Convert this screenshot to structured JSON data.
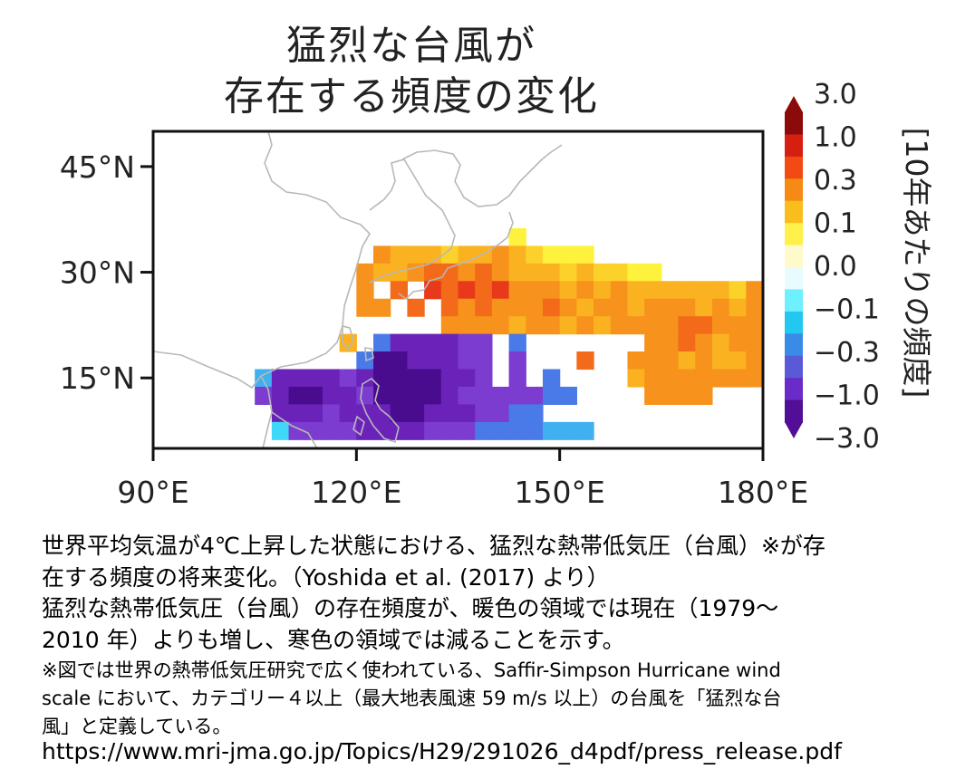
{
  "title": {
    "line1": "猛烈な台風が",
    "line2": "存在する頻度の変化"
  },
  "axes": {
    "lat_labels": [
      "45°N",
      "30°N",
      "15°N"
    ],
    "lon_labels": [
      "90°E",
      "120°E",
      "150°E",
      "180°E"
    ],
    "lat_values": [
      45,
      30,
      15
    ],
    "lon_values": [
      90,
      120,
      150,
      180
    ],
    "lon_range": [
      90,
      180
    ],
    "lat_range": [
      5,
      50
    ]
  },
  "colorbar": {
    "title": "[10年あたりの頻度]",
    "ticks": [
      "3.0",
      "1.0",
      "0.3",
      "0.1",
      "0.0",
      "−0.1",
      "−0.3",
      "−1.0",
      "−3.0"
    ],
    "colors": [
      "#8c0a0a",
      "#d61f10",
      "#f24a12",
      "#f58a14",
      "#fbbd1c",
      "#fff04a",
      "#fffacc",
      "#e8fbff",
      "#6ff0ff",
      "#22c8f0",
      "#3a8ae8",
      "#5a5ad8",
      "#6a2cc8",
      "#520e96"
    ]
  },
  "palette": {
    "darkred": "#c81c10",
    "red": "#e8391a",
    "orange_red": "#f26a1a",
    "orange": "#f7921c",
    "light_orange": "#fbb220",
    "yellow_orange": "#fcd22a",
    "yellow": "#fff23c",
    "deep_purple": "#4a0c8e",
    "purple": "#6a22b8",
    "violet": "#7c3cd0",
    "blue": "#4a7ae8",
    "light_blue": "#40b0f0",
    "cyan": "#40d8f8"
  },
  "chart_data": {
    "type": "heatmap",
    "title": "猛烈な台風が存在する頻度の変化",
    "xlabel": "",
    "ylabel": "",
    "x_range": [
      90,
      180
    ],
    "y_range": [
      5,
      50
    ],
    "legend": "colorbar-right",
    "grid": false,
    "cell_size_deg": 2.5,
    "cells": [
      {
        "lon": 143.75,
        "lat": 35,
        "c": "yellow"
      },
      {
        "lon": 123.75,
        "lat": 32.5,
        "c": "orange"
      },
      {
        "lon": 126.25,
        "lat": 32.5,
        "c": "light_orange"
      },
      {
        "lon": 128.75,
        "lat": 32.5,
        "c": "light_orange"
      },
      {
        "lon": 131.25,
        "lat": 32.5,
        "c": "light_orange"
      },
      {
        "lon": 133.75,
        "lat": 32.5,
        "c": "yellow_orange"
      },
      {
        "lon": 136.25,
        "lat": 32.5,
        "c": "light_orange"
      },
      {
        "lon": 138.75,
        "lat": 32.5,
        "c": "light_orange"
      },
      {
        "lon": 141.25,
        "lat": 32.5,
        "c": "orange"
      },
      {
        "lon": 143.75,
        "lat": 32.5,
        "c": "light_orange"
      },
      {
        "lon": 146.25,
        "lat": 32.5,
        "c": "yellow_orange"
      },
      {
        "lon": 148.75,
        "lat": 32.5,
        "c": "yellow"
      },
      {
        "lon": 151.25,
        "lat": 32.5,
        "c": "yellow"
      },
      {
        "lon": 153.75,
        "lat": 32.5,
        "c": "yellow"
      },
      {
        "lon": 121.25,
        "lat": 30,
        "c": "orange"
      },
      {
        "lon": 123.75,
        "lat": 30,
        "c": "light_orange"
      },
      {
        "lon": 126.25,
        "lat": 30,
        "c": "light_orange"
      },
      {
        "lon": 128.75,
        "lat": 30,
        "c": "orange"
      },
      {
        "lon": 131.25,
        "lat": 30,
        "c": "orange_red"
      },
      {
        "lon": 133.75,
        "lat": 30,
        "c": "orange_red"
      },
      {
        "lon": 136.25,
        "lat": 30,
        "c": "orange"
      },
      {
        "lon": 138.75,
        "lat": 30,
        "c": "orange_red"
      },
      {
        "lon": 141.25,
        "lat": 30,
        "c": "orange"
      },
      {
        "lon": 143.75,
        "lat": 30,
        "c": "light_orange"
      },
      {
        "lon": 146.25,
        "lat": 30,
        "c": "light_orange"
      },
      {
        "lon": 148.75,
        "lat": 30,
        "c": "light_orange"
      },
      {
        "lon": 151.25,
        "lat": 30,
        "c": "yellow_orange"
      },
      {
        "lon": 153.75,
        "lat": 30,
        "c": "light_orange"
      },
      {
        "lon": 156.25,
        "lat": 30,
        "c": "yellow_orange"
      },
      {
        "lon": 158.75,
        "lat": 30,
        "c": "yellow_orange"
      },
      {
        "lon": 161.25,
        "lat": 30,
        "c": "yellow"
      },
      {
        "lon": 163.75,
        "lat": 30,
        "c": "yellow"
      },
      {
        "lon": 121.25,
        "lat": 27.5,
        "c": "orange"
      },
      {
        "lon": 126.25,
        "lat": 27.5,
        "c": "orange_red"
      },
      {
        "lon": 131.25,
        "lat": 27.5,
        "c": "red"
      },
      {
        "lon": 133.75,
        "lat": 27.5,
        "c": "orange_red"
      },
      {
        "lon": 136.25,
        "lat": 27.5,
        "c": "red"
      },
      {
        "lon": 138.75,
        "lat": 27.5,
        "c": "orange_red"
      },
      {
        "lon": 141.25,
        "lat": 27.5,
        "c": "red"
      },
      {
        "lon": 143.75,
        "lat": 27.5,
        "c": "orange"
      },
      {
        "lon": 146.25,
        "lat": 27.5,
        "c": "orange"
      },
      {
        "lon": 148.75,
        "lat": 27.5,
        "c": "orange"
      },
      {
        "lon": 151.25,
        "lat": 27.5,
        "c": "light_orange"
      },
      {
        "lon": 153.75,
        "lat": 27.5,
        "c": "orange"
      },
      {
        "lon": 156.25,
        "lat": 27.5,
        "c": "light_orange"
      },
      {
        "lon": 158.75,
        "lat": 27.5,
        "c": "orange"
      },
      {
        "lon": 161.25,
        "lat": 27.5,
        "c": "light_orange"
      },
      {
        "lon": 163.75,
        "lat": 27.5,
        "c": "light_orange"
      },
      {
        "lon": 166.25,
        "lat": 27.5,
        "c": "light_orange"
      },
      {
        "lon": 168.75,
        "lat": 27.5,
        "c": "light_orange"
      },
      {
        "lon": 171.25,
        "lat": 27.5,
        "c": "light_orange"
      },
      {
        "lon": 173.75,
        "lat": 27.5,
        "c": "light_orange"
      },
      {
        "lon": 176.25,
        "lat": 27.5,
        "c": "yellow_orange"
      },
      {
        "lon": 178.75,
        "lat": 27.5,
        "c": "orange"
      },
      {
        "lon": 121.25,
        "lat": 25,
        "c": "orange"
      },
      {
        "lon": 123.75,
        "lat": 25,
        "c": "orange"
      },
      {
        "lon": 128.75,
        "lat": 25,
        "c": "orange_red"
      },
      {
        "lon": 133.75,
        "lat": 25,
        "c": "orange_red"
      },
      {
        "lon": 136.25,
        "lat": 25,
        "c": "orange"
      },
      {
        "lon": 138.75,
        "lat": 25,
        "c": "orange_red"
      },
      {
        "lon": 141.25,
        "lat": 25,
        "c": "orange"
      },
      {
        "lon": 143.75,
        "lat": 25,
        "c": "orange"
      },
      {
        "lon": 146.25,
        "lat": 25,
        "c": "orange"
      },
      {
        "lon": 148.75,
        "lat": 25,
        "c": "orange_red"
      },
      {
        "lon": 151.25,
        "lat": 25,
        "c": "orange"
      },
      {
        "lon": 153.75,
        "lat": 25,
        "c": "light_orange"
      },
      {
        "lon": 156.25,
        "lat": 25,
        "c": "orange"
      },
      {
        "lon": 158.75,
        "lat": 25,
        "c": "orange"
      },
      {
        "lon": 161.25,
        "lat": 25,
        "c": "light_orange"
      },
      {
        "lon": 163.75,
        "lat": 25,
        "c": "orange"
      },
      {
        "lon": 166.25,
        "lat": 25,
        "c": "orange"
      },
      {
        "lon": 168.75,
        "lat": 25,
        "c": "orange"
      },
      {
        "lon": 171.25,
        "lat": 25,
        "c": "light_orange"
      },
      {
        "lon": 173.75,
        "lat": 25,
        "c": "orange"
      },
      {
        "lon": 176.25,
        "lat": 25,
        "c": "light_orange"
      },
      {
        "lon": 178.75,
        "lat": 25,
        "c": "orange"
      },
      {
        "lon": 133.75,
        "lat": 22.5,
        "c": "orange"
      },
      {
        "lon": 136.25,
        "lat": 22.5,
        "c": "orange"
      },
      {
        "lon": 138.75,
        "lat": 22.5,
        "c": "orange"
      },
      {
        "lon": 141.25,
        "lat": 22.5,
        "c": "orange"
      },
      {
        "lon": 143.75,
        "lat": 22.5,
        "c": "light_orange"
      },
      {
        "lon": 146.25,
        "lat": 22.5,
        "c": "orange"
      },
      {
        "lon": 148.75,
        "lat": 22.5,
        "c": "orange"
      },
      {
        "lon": 151.25,
        "lat": 22.5,
        "c": "light_orange"
      },
      {
        "lon": 153.75,
        "lat": 22.5,
        "c": "orange"
      },
      {
        "lon": 156.25,
        "lat": 22.5,
        "c": "light_orange"
      },
      {
        "lon": 158.75,
        "lat": 22.5,
        "c": "orange"
      },
      {
        "lon": 161.25,
        "lat": 22.5,
        "c": "orange"
      },
      {
        "lon": 163.75,
        "lat": 22.5,
        "c": "orange"
      },
      {
        "lon": 166.25,
        "lat": 22.5,
        "c": "orange"
      },
      {
        "lon": 168.75,
        "lat": 22.5,
        "c": "orange_red"
      },
      {
        "lon": 171.25,
        "lat": 22.5,
        "c": "orange_red"
      },
      {
        "lon": 173.75,
        "lat": 22.5,
        "c": "orange"
      },
      {
        "lon": 176.25,
        "lat": 22.5,
        "c": "orange"
      },
      {
        "lon": 178.75,
        "lat": 22.5,
        "c": "orange"
      },
      {
        "lon": 118.75,
        "lat": 20,
        "c": "light_orange"
      },
      {
        "lon": 123.75,
        "lat": 20,
        "c": "blue"
      },
      {
        "lon": 126.25,
        "lat": 20,
        "c": "purple"
      },
      {
        "lon": 128.75,
        "lat": 20,
        "c": "purple"
      },
      {
        "lon": 131.25,
        "lat": 20,
        "c": "purple"
      },
      {
        "lon": 133.75,
        "lat": 20,
        "c": "purple"
      },
      {
        "lon": 136.25,
        "lat": 20,
        "c": "violet"
      },
      {
        "lon": 138.75,
        "lat": 20,
        "c": "violet"
      },
      {
        "lon": 143.75,
        "lat": 20,
        "c": "blue"
      },
      {
        "lon": 163.75,
        "lat": 20,
        "c": "orange"
      },
      {
        "lon": 166.25,
        "lat": 20,
        "c": "orange"
      },
      {
        "lon": 168.75,
        "lat": 20,
        "c": "orange_red"
      },
      {
        "lon": 171.25,
        "lat": 20,
        "c": "orange"
      },
      {
        "lon": 173.75,
        "lat": 20,
        "c": "light_orange"
      },
      {
        "lon": 176.25,
        "lat": 20,
        "c": "orange"
      },
      {
        "lon": 178.75,
        "lat": 20,
        "c": "orange"
      },
      {
        "lon": 121.25,
        "lat": 17.5,
        "c": "blue"
      },
      {
        "lon": 123.75,
        "lat": 17.5,
        "c": "deep_purple"
      },
      {
        "lon": 126.25,
        "lat": 17.5,
        "c": "deep_purple"
      },
      {
        "lon": 128.75,
        "lat": 17.5,
        "c": "purple"
      },
      {
        "lon": 131.25,
        "lat": 17.5,
        "c": "purple"
      },
      {
        "lon": 133.75,
        "lat": 17.5,
        "c": "purple"
      },
      {
        "lon": 136.25,
        "lat": 17.5,
        "c": "violet"
      },
      {
        "lon": 138.75,
        "lat": 17.5,
        "c": "violet"
      },
      {
        "lon": 143.75,
        "lat": 17.5,
        "c": "violet"
      },
      {
        "lon": 153.75,
        "lat": 17.5,
        "c": "orange_red"
      },
      {
        "lon": 161.25,
        "lat": 17.5,
        "c": "orange"
      },
      {
        "lon": 163.75,
        "lat": 17.5,
        "c": "orange"
      },
      {
        "lon": 166.25,
        "lat": 17.5,
        "c": "orange"
      },
      {
        "lon": 168.75,
        "lat": 17.5,
        "c": "light_orange"
      },
      {
        "lon": 171.25,
        "lat": 17.5,
        "c": "orange"
      },
      {
        "lon": 173.75,
        "lat": 17.5,
        "c": "light_orange"
      },
      {
        "lon": 176.25,
        "lat": 17.5,
        "c": "light_orange"
      },
      {
        "lon": 178.75,
        "lat": 17.5,
        "c": "orange"
      },
      {
        "lon": 106.25,
        "lat": 15,
        "c": "light_blue"
      },
      {
        "lon": 108.75,
        "lat": 15,
        "c": "purple"
      },
      {
        "lon": 111.25,
        "lat": 15,
        "c": "purple"
      },
      {
        "lon": 113.75,
        "lat": 15,
        "c": "purple"
      },
      {
        "lon": 116.25,
        "lat": 15,
        "c": "purple"
      },
      {
        "lon": 118.75,
        "lat": 15,
        "c": "violet"
      },
      {
        "lon": 121.25,
        "lat": 15,
        "c": "purple"
      },
      {
        "lon": 123.75,
        "lat": 15,
        "c": "deep_purple"
      },
      {
        "lon": 126.25,
        "lat": 15,
        "c": "deep_purple"
      },
      {
        "lon": 128.75,
        "lat": 15,
        "c": "deep_purple"
      },
      {
        "lon": 131.25,
        "lat": 15,
        "c": "deep_purple"
      },
      {
        "lon": 133.75,
        "lat": 15,
        "c": "purple"
      },
      {
        "lon": 136.25,
        "lat": 15,
        "c": "purple"
      },
      {
        "lon": 138.75,
        "lat": 15,
        "c": "violet"
      },
      {
        "lon": 143.75,
        "lat": 15,
        "c": "violet"
      },
      {
        "lon": 148.75,
        "lat": 15,
        "c": "blue"
      },
      {
        "lon": 161.25,
        "lat": 15,
        "c": "light_orange"
      },
      {
        "lon": 163.75,
        "lat": 15,
        "c": "orange"
      },
      {
        "lon": 166.25,
        "lat": 15,
        "c": "orange"
      },
      {
        "lon": 168.75,
        "lat": 15,
        "c": "orange"
      },
      {
        "lon": 171.25,
        "lat": 15,
        "c": "orange"
      },
      {
        "lon": 173.75,
        "lat": 15,
        "c": "orange"
      },
      {
        "lon": 176.25,
        "lat": 15,
        "c": "orange"
      },
      {
        "lon": 178.75,
        "lat": 15,
        "c": "orange"
      },
      {
        "lon": 106.25,
        "lat": 12.5,
        "c": "violet"
      },
      {
        "lon": 108.75,
        "lat": 12.5,
        "c": "purple"
      },
      {
        "lon": 111.25,
        "lat": 12.5,
        "c": "deep_purple"
      },
      {
        "lon": 113.75,
        "lat": 12.5,
        "c": "deep_purple"
      },
      {
        "lon": 116.25,
        "lat": 12.5,
        "c": "purple"
      },
      {
        "lon": 118.75,
        "lat": 12.5,
        "c": "purple"
      },
      {
        "lon": 121.25,
        "lat": 12.5,
        "c": "violet"
      },
      {
        "lon": 123.75,
        "lat": 12.5,
        "c": "deep_purple"
      },
      {
        "lon": 126.25,
        "lat": 12.5,
        "c": "deep_purple"
      },
      {
        "lon": 128.75,
        "lat": 12.5,
        "c": "deep_purple"
      },
      {
        "lon": 131.25,
        "lat": 12.5,
        "c": "deep_purple"
      },
      {
        "lon": 133.75,
        "lat": 12.5,
        "c": "purple"
      },
      {
        "lon": 136.25,
        "lat": 12.5,
        "c": "violet"
      },
      {
        "lon": 138.75,
        "lat": 12.5,
        "c": "violet"
      },
      {
        "lon": 141.25,
        "lat": 12.5,
        "c": "violet"
      },
      {
        "lon": 143.75,
        "lat": 12.5,
        "c": "violet"
      },
      {
        "lon": 146.25,
        "lat": 12.5,
        "c": "violet"
      },
      {
        "lon": 148.75,
        "lat": 12.5,
        "c": "blue"
      },
      {
        "lon": 151.25,
        "lat": 12.5,
        "c": "blue"
      },
      {
        "lon": 163.75,
        "lat": 12.5,
        "c": "orange"
      },
      {
        "lon": 166.25,
        "lat": 12.5,
        "c": "orange"
      },
      {
        "lon": 168.75,
        "lat": 12.5,
        "c": "orange"
      },
      {
        "lon": 171.25,
        "lat": 12.5,
        "c": "orange"
      },
      {
        "lon": 108.75,
        "lat": 10,
        "c": "purple"
      },
      {
        "lon": 111.25,
        "lat": 10,
        "c": "purple"
      },
      {
        "lon": 113.75,
        "lat": 10,
        "c": "purple"
      },
      {
        "lon": 116.25,
        "lat": 10,
        "c": "violet"
      },
      {
        "lon": 118.75,
        "lat": 10,
        "c": "purple"
      },
      {
        "lon": 121.25,
        "lat": 10,
        "c": "purple"
      },
      {
        "lon": 123.75,
        "lat": 10,
        "c": "purple"
      },
      {
        "lon": 126.25,
        "lat": 10,
        "c": "deep_purple"
      },
      {
        "lon": 128.75,
        "lat": 10,
        "c": "deep_purple"
      },
      {
        "lon": 131.25,
        "lat": 10,
        "c": "purple"
      },
      {
        "lon": 133.75,
        "lat": 10,
        "c": "purple"
      },
      {
        "lon": 136.25,
        "lat": 10,
        "c": "purple"
      },
      {
        "lon": 138.75,
        "lat": 10,
        "c": "violet"
      },
      {
        "lon": 141.25,
        "lat": 10,
        "c": "violet"
      },
      {
        "lon": 143.75,
        "lat": 10,
        "c": "blue"
      },
      {
        "lon": 146.25,
        "lat": 10,
        "c": "blue"
      },
      {
        "lon": 108.75,
        "lat": 7.5,
        "c": "cyan"
      },
      {
        "lon": 111.25,
        "lat": 7.5,
        "c": "violet"
      },
      {
        "lon": 113.75,
        "lat": 7.5,
        "c": "violet"
      },
      {
        "lon": 116.25,
        "lat": 7.5,
        "c": "violet"
      },
      {
        "lon": 118.75,
        "lat": 7.5,
        "c": "violet"
      },
      {
        "lon": 121.25,
        "lat": 7.5,
        "c": "purple"
      },
      {
        "lon": 123.75,
        "lat": 7.5,
        "c": "purple"
      },
      {
        "lon": 126.25,
        "lat": 7.5,
        "c": "purple"
      },
      {
        "lon": 128.75,
        "lat": 7.5,
        "c": "purple"
      },
      {
        "lon": 131.25,
        "lat": 7.5,
        "c": "violet"
      },
      {
        "lon": 133.75,
        "lat": 7.5,
        "c": "violet"
      },
      {
        "lon": 136.25,
        "lat": 7.5,
        "c": "violet"
      },
      {
        "lon": 138.75,
        "lat": 7.5,
        "c": "blue"
      },
      {
        "lon": 141.25,
        "lat": 7.5,
        "c": "blue"
      },
      {
        "lon": 143.75,
        "lat": 7.5,
        "c": "blue"
      },
      {
        "lon": 146.25,
        "lat": 7.5,
        "c": "blue"
      },
      {
        "lon": 148.75,
        "lat": 7.5,
        "c": "light_blue"
      },
      {
        "lon": 151.25,
        "lat": 7.5,
        "c": "light_blue"
      },
      {
        "lon": 153.75,
        "lat": 7.5,
        "c": "light_blue"
      }
    ]
  },
  "caption": {
    "line1": "世界平均気温が4℃上昇した状態における、猛烈な熱帯低気圧（台風）※が存",
    "line2": "在する頻度の将来変化。（Yoshida et al. (2017) より）",
    "line3": "猛烈な熱帯低気圧（台風）の存在頻度が、暖色の領域では現在（1979～",
    "line4": "2010 年）よりも増し、寒色の領域では減ることを示す。",
    "note1": "※図では世界の熱帯低気圧研究で広く使われている、Saffir-Simpson Hurricane wind",
    "note2": "scale において、カテゴリー４以上（最大地表風速 59 m/s 以上）の台風を「猛烈な台",
    "note3": "風」と定義している。",
    "url": "https://www.mri-jma.go.jp/Topics/H29/291026_d4pdf/press_release.pdf"
  }
}
